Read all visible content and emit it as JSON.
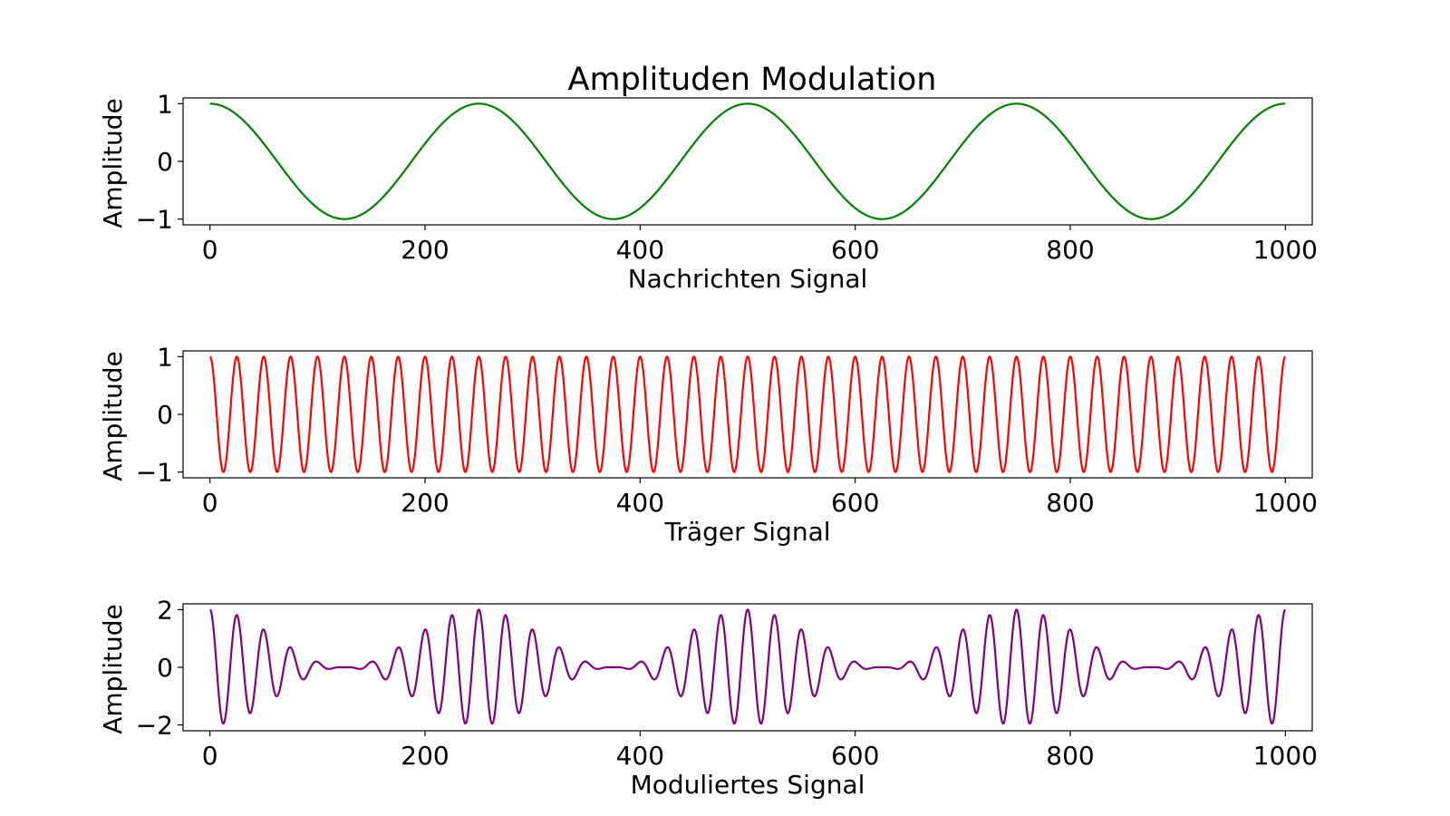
{
  "title": "Amplituden Modulation",
  "chart_data": [
    {
      "type": "line",
      "title": "Amplituden Modulation",
      "xlabel": "Nachrichten Signal",
      "ylabel": "Amplitude",
      "xlim": [
        -25,
        1025
      ],
      "ylim": [
        -1.1,
        1.1
      ],
      "xticks": [
        0,
        200,
        400,
        600,
        800,
        1000
      ],
      "xtick_labels": [
        "0",
        "200",
        "400",
        "600",
        "800",
        "1000"
      ],
      "yticks": [
        -1,
        0,
        1
      ],
      "ytick_labels": [
        "−1",
        "0",
        "1"
      ],
      "grid": false,
      "color": "#008000",
      "function": "cos(2*pi*x/250)",
      "x_range": [
        0,
        1000
      ],
      "series": [
        {
          "x": [
            0,
            125,
            250,
            375,
            500,
            625,
            750,
            875,
            1000
          ],
          "y": [
            1,
            -1,
            1,
            -1,
            1,
            -1,
            1,
            -1,
            1
          ]
        }
      ]
    },
    {
      "type": "line",
      "title": "",
      "xlabel": "Träger Signal",
      "ylabel": "Amplitude",
      "xlim": [
        -25,
        1025
      ],
      "ylim": [
        -1.1,
        1.1
      ],
      "xticks": [
        0,
        200,
        400,
        600,
        800,
        1000
      ],
      "xtick_labels": [
        "0",
        "200",
        "400",
        "600",
        "800",
        "1000"
      ],
      "yticks": [
        -1,
        0,
        1
      ],
      "ytick_labels": [
        "−1",
        "0",
        "1"
      ],
      "grid": false,
      "color": "#ff0000",
      "function": "cos(2*pi*x/25)",
      "x_range": [
        0,
        1000
      ],
      "series": [
        {
          "x": [
            0,
            12.5,
            25,
            37.5,
            50,
            62.5,
            75,
            87.5,
            100
          ],
          "y": [
            1,
            -1,
            1,
            -1,
            1,
            -1,
            1,
            -1,
            1
          ]
        }
      ]
    },
    {
      "type": "line",
      "title": "",
      "xlabel": "Moduliertes Signal",
      "ylabel": "Amplitude",
      "xlim": [
        -25,
        1025
      ],
      "ylim": [
        -2.2,
        2.2
      ],
      "xticks": [
        0,
        200,
        400,
        600,
        800,
        1000
      ],
      "xtick_labels": [
        "0",
        "200",
        "400",
        "600",
        "800",
        "1000"
      ],
      "yticks": [
        -2,
        0,
        2
      ],
      "ytick_labels": [
        "−2",
        "0",
        "2"
      ],
      "grid": false,
      "color": "#800080",
      "function": "(1 + cos(2*pi*x/250)) * cos(2*pi*x/25)",
      "x_range": [
        0,
        1000
      ],
      "series": [
        {
          "x": [
            0,
            125,
            250,
            375,
            500,
            625,
            750,
            875,
            1000
          ],
          "y": [
            2,
            0,
            2,
            0,
            2,
            0,
            2,
            0,
            2
          ]
        }
      ]
    }
  ]
}
